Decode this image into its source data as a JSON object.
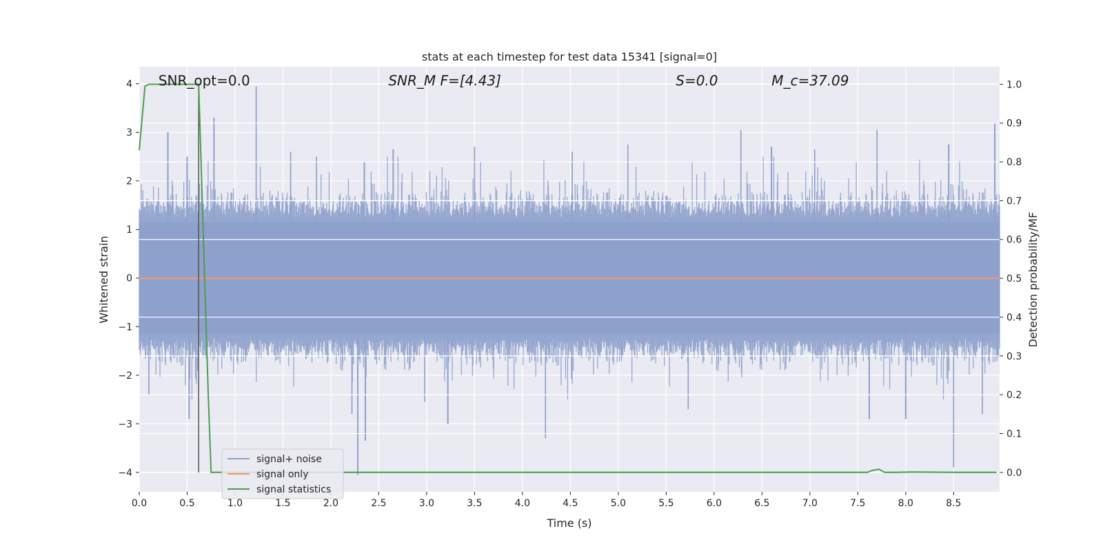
{
  "chart_data": {
    "type": "line",
    "title": "stats at each timestep for test data 15341 [signal=0]",
    "xlabel": "Time (s)",
    "ylabel": "Whitened strain",
    "y2label": "Detection probability/MF",
    "xlim": [
      0.0,
      8.98
    ],
    "ylim": [
      -4.4,
      4.35
    ],
    "y2lim": [
      -0.05,
      1.045
    ],
    "x_ticks": [
      "0.0",
      "0.5",
      "1.0",
      "1.5",
      "2.0",
      "2.5",
      "3.0",
      "3.5",
      "4.0",
      "4.5",
      "5.0",
      "5.5",
      "6.0",
      "6.5",
      "7.0",
      "7.5",
      "8.0",
      "8.5"
    ],
    "x_tick_values": [
      0.0,
      0.5,
      1.0,
      1.5,
      2.0,
      2.5,
      3.0,
      3.5,
      4.0,
      4.5,
      5.0,
      5.5,
      6.0,
      6.5,
      7.0,
      7.5,
      8.0,
      8.5
    ],
    "y_ticks": [
      "−4",
      "−3",
      "−2",
      "−1",
      "0",
      "1",
      "2",
      "3",
      "4"
    ],
    "y_tick_values": [
      -4,
      -3,
      -2,
      -1,
      0,
      1,
      2,
      3,
      4
    ],
    "y2_ticks": [
      "0.0",
      "0.1",
      "0.2",
      "0.3",
      "0.4",
      "0.5",
      "0.6",
      "0.7",
      "0.8",
      "0.9",
      "1.0"
    ],
    "y2_tick_values": [
      0.0,
      0.1,
      0.2,
      0.3,
      0.4,
      0.5,
      0.6,
      0.7,
      0.8,
      0.9,
      1.0
    ],
    "grid": true,
    "legend_position": "bottom-left",
    "annotations": [
      {
        "text": "SNR_opt=0.0",
        "x": 0.2,
        "italic": false
      },
      {
        "text": "SNR_M F=[4.43]",
        "x": 2.6,
        "italic": true
      },
      {
        "text": "S=0.0",
        "x": 5.6,
        "italic": true
      },
      {
        "text": "M_c=37.09",
        "x": 6.6,
        "italic": true
      }
    ],
    "vline_x": 0.62,
    "series": [
      {
        "name": "signal+ noise",
        "color": "#8da0cb",
        "axis": "left",
        "kind": "noise",
        "typical_range": [
          -1.9,
          1.9
        ],
        "spikes": [
          {
            "x": 0.3,
            "y": 3.0
          },
          {
            "x": 0.5,
            "y": 2.5
          },
          {
            "x": 0.78,
            "y": 3.3
          },
          {
            "x": 1.22,
            "y": 3.95
          },
          {
            "x": 1.58,
            "y": 2.6
          },
          {
            "x": 1.85,
            "y": 2.5
          },
          {
            "x": 2.35,
            "y": 2.4
          },
          {
            "x": 2.65,
            "y": 2.65
          },
          {
            "x": 3.5,
            "y": 2.7
          },
          {
            "x": 4.52,
            "y": 2.6
          },
          {
            "x": 5.1,
            "y": 2.75
          },
          {
            "x": 6.28,
            "y": 3.05
          },
          {
            "x": 6.6,
            "y": 2.7
          },
          {
            "x": 7.05,
            "y": 2.65
          },
          {
            "x": 7.7,
            "y": 3.05
          },
          {
            "x": 8.45,
            "y": 2.75
          },
          {
            "x": 8.93,
            "y": 3.2
          },
          {
            "x": 0.52,
            "y": -2.9
          },
          {
            "x": 2.28,
            "y": -4.05
          },
          {
            "x": 2.36,
            "y": -3.35
          },
          {
            "x": 2.22,
            "y": -2.8
          },
          {
            "x": 3.22,
            "y": -3.0
          },
          {
            "x": 4.24,
            "y": -3.3
          },
          {
            "x": 7.62,
            "y": -2.9
          },
          {
            "x": 8.0,
            "y": -2.9
          },
          {
            "x": 8.5,
            "y": -3.9
          },
          {
            "x": 8.8,
            "y": -2.8
          },
          {
            "x": 0.1,
            "y": -2.4
          },
          {
            "x": 2.98,
            "y": -2.55
          },
          {
            "x": 5.73,
            "y": -2.7
          }
        ]
      },
      {
        "name": "signal only",
        "color": "#fc8d62",
        "axis": "left",
        "x": [
          0.0,
          8.98
        ],
        "y": [
          0.0,
          0.0
        ]
      },
      {
        "name": "signal statistics",
        "color": "#4a9e4e",
        "axis": "right",
        "x": [
          0.0,
          0.06,
          0.1,
          0.15,
          0.3,
          0.45,
          0.6,
          0.62,
          0.67,
          0.72,
          0.75,
          1.5,
          3.0,
          5.0,
          7.0,
          7.6,
          7.65,
          7.72,
          7.78,
          7.9,
          8.1,
          8.5,
          8.95
        ],
        "y": [
          0.83,
          0.995,
          1.0,
          1.0,
          1.0,
          1.0,
          1.0,
          1.0,
          0.6,
          0.2,
          0.0,
          0.0,
          0.0,
          0.0,
          0.0,
          0.0,
          0.005,
          0.008,
          0.0,
          0.0,
          0.001,
          0.0,
          0.0
        ]
      }
    ]
  },
  "legend": {
    "items": [
      {
        "label": "signal+ noise",
        "color": "#8da0cb"
      },
      {
        "label": "signal only",
        "color": "#fc8d62"
      },
      {
        "label": "signal statistics",
        "color": "#4a9e4e"
      }
    ]
  },
  "colors": {
    "plot_background": "#eaeaf2",
    "grid": "#ffffff",
    "vline": "#555555"
  }
}
